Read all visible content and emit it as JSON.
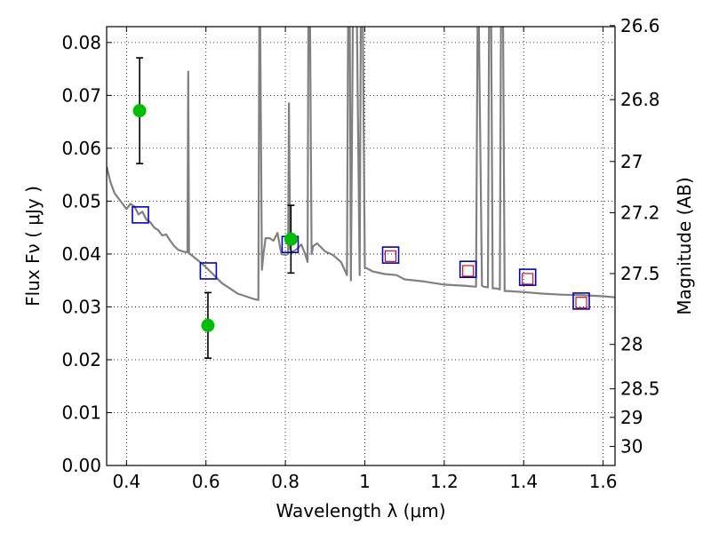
{
  "chart_data": {
    "type": "line",
    "xlabel": "Wavelength  λ (μm)",
    "ylabel": "Flux  Fν  ( μJy )",
    "ylabel_right": "Magnitude (AB)",
    "xlim": [
      0.35,
      1.63
    ],
    "ylim": [
      0.0,
      0.083
    ],
    "grid": true,
    "x_ticks": [
      0.4,
      0.6,
      0.8,
      1.0,
      1.2,
      1.4,
      1.6
    ],
    "x_tick_labels": [
      "0.4",
      "0.6",
      "0.8",
      "1",
      "1.2",
      "1.4",
      "1.6"
    ],
    "y_ticks": [
      0.0,
      0.01,
      0.02,
      0.03,
      0.04,
      0.05,
      0.06,
      0.07,
      0.08
    ],
    "y_tick_labels": [
      "0.00",
      "0.01",
      "0.02",
      "0.03",
      "0.04",
      "0.05",
      "0.06",
      "0.07",
      "0.08"
    ],
    "right_ticks": [
      {
        "label": "26.6",
        "flux": 0.0832
      },
      {
        "label": "26.8",
        "flux": 0.0692
      },
      {
        "label": "27",
        "flux": 0.0575
      },
      {
        "label": "27.2",
        "flux": 0.0478
      },
      {
        "label": "27.5",
        "flux": 0.0363
      },
      {
        "label": "28",
        "flux": 0.0229
      },
      {
        "label": "28.5",
        "flux": 0.0145
      },
      {
        "label": "29",
        "flux": 0.0091
      },
      {
        "label": "30",
        "flux": 0.0036
      }
    ],
    "colors": {
      "model": "#808080",
      "observed": "#00bf00",
      "model_photometry": "#0000cc",
      "inset_square": "#cc0000",
      "error_bar": "#000000"
    },
    "series": [
      {
        "kind": "model_spectrum",
        "x": [
          0.35,
          0.36,
          0.37,
          0.38,
          0.39,
          0.4,
          0.41,
          0.42,
          0.43,
          0.44,
          0.45,
          0.46,
          0.47,
          0.48,
          0.49,
          0.5,
          0.51,
          0.52,
          0.53,
          0.545,
          0.5535,
          0.5555,
          0.5575,
          0.56,
          0.58,
          0.6,
          0.62,
          0.64,
          0.66,
          0.68,
          0.7,
          0.72,
          0.732,
          0.7345,
          0.7365,
          0.741,
          0.745,
          0.75,
          0.76,
          0.77,
          0.78,
          0.79,
          0.8,
          0.807,
          0.809,
          0.812,
          0.815,
          0.82,
          0.83,
          0.84,
          0.85,
          0.856,
          0.858,
          0.862,
          0.866,
          0.87,
          0.88,
          0.9,
          0.92,
          0.94,
          0.955,
          0.958,
          0.962,
          0.965,
          0.97,
          0.98,
          0.987,
          0.99,
          0.995,
          1.0,
          1.02,
          1.05,
          1.08,
          1.1,
          1.15,
          1.2,
          1.25,
          1.28,
          1.284,
          1.287,
          1.295,
          1.3,
          1.31,
          1.313,
          1.318,
          1.322,
          1.33,
          1.34,
          1.343,
          1.348,
          1.352,
          1.36,
          1.4,
          1.45,
          1.5,
          1.55,
          1.6,
          1.63
        ],
        "y": [
          0.0565,
          0.0535,
          0.0515,
          0.0505,
          0.0495,
          0.0485,
          0.0495,
          0.049,
          0.0475,
          0.048,
          0.0465,
          0.046,
          0.045,
          0.0445,
          0.0435,
          0.0437,
          0.0425,
          0.0415,
          0.0408,
          0.0404,
          0.0403,
          0.0745,
          0.0402,
          0.04,
          0.0388,
          0.0375,
          0.036,
          0.0345,
          0.0335,
          0.0325,
          0.032,
          0.0315,
          0.0313,
          0.085,
          0.085,
          0.037,
          0.04,
          0.043,
          0.043,
          0.0425,
          0.044,
          0.04,
          0.0398,
          0.04,
          0.0685,
          0.041,
          0.0405,
          0.0405,
          0.041,
          0.0418,
          0.04,
          0.0385,
          0.085,
          0.085,
          0.04,
          0.0415,
          0.042,
          0.0405,
          0.0398,
          0.0385,
          0.036,
          0.085,
          0.085,
          0.035,
          0.085,
          0.085,
          0.036,
          0.085,
          0.085,
          0.0375,
          0.0367,
          0.0362,
          0.036,
          0.0352,
          0.0348,
          0.0342,
          0.034,
          0.0338,
          0.085,
          0.085,
          0.034,
          0.0338,
          0.0337,
          0.085,
          0.085,
          0.0335,
          0.0335,
          0.0333,
          0.085,
          0.085,
          0.033,
          0.033,
          0.0328,
          0.0325,
          0.0323,
          0.0322,
          0.032,
          0.0318
        ]
      },
      {
        "kind": "observed_photometry",
        "x": [
          0.433,
          0.605,
          0.814
        ],
        "y": [
          0.0671,
          0.0265,
          0.0428
        ],
        "yerr": [
          0.01,
          0.0062,
          0.0064
        ]
      },
      {
        "kind": "model_photometry",
        "x": [
          0.435,
          0.606,
          0.812,
          1.065,
          1.26,
          1.41,
          1.545
        ],
        "y": [
          0.0474,
          0.0368,
          0.0418,
          0.0398,
          0.0371,
          0.0356,
          0.0311
        ]
      },
      {
        "kind": "model_photometry_inner",
        "x": [
          1.065,
          1.26,
          1.41,
          1.545
        ],
        "y": [
          0.0396,
          0.0368,
          0.0353,
          0.0308
        ]
      }
    ]
  }
}
